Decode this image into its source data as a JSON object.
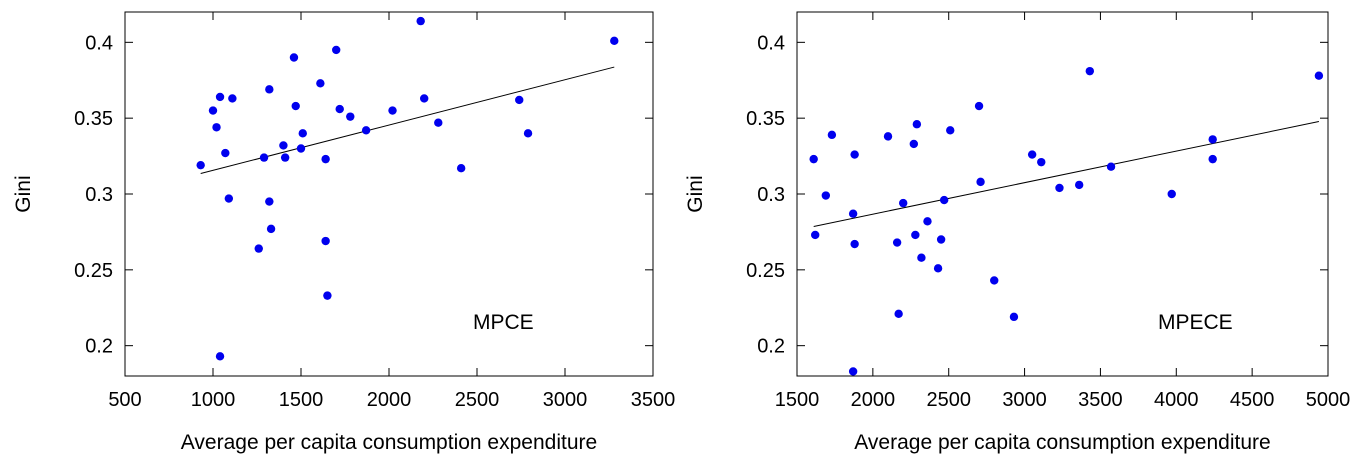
{
  "chart_data": [
    {
      "type": "scatter",
      "xlabel": "Average per capita consumption expenditure",
      "ylabel": "Gini",
      "annotation": "MPCE",
      "xlim": [
        500,
        3500
      ],
      "ylim": [
        0.18,
        0.42
      ],
      "xticks": [
        500,
        1000,
        1500,
        2000,
        2500,
        3000,
        3500
      ],
      "yticks": [
        0.2,
        0.25,
        0.3,
        0.35,
        0.4
      ],
      "grid": false,
      "point_color": "#0000ee",
      "points": [
        [
          930,
          0.319
        ],
        [
          1000,
          0.355
        ],
        [
          1020,
          0.344
        ],
        [
          1040,
          0.364
        ],
        [
          1040,
          0.193
        ],
        [
          1070,
          0.327
        ],
        [
          1090,
          0.297
        ],
        [
          1110,
          0.363
        ],
        [
          1260,
          0.264
        ],
        [
          1290,
          0.324
        ],
        [
          1320,
          0.369
        ],
        [
          1320,
          0.295
        ],
        [
          1330,
          0.277
        ],
        [
          1400,
          0.332
        ],
        [
          1410,
          0.324
        ],
        [
          1460,
          0.39
        ],
        [
          1470,
          0.358
        ],
        [
          1500,
          0.33
        ],
        [
          1510,
          0.34
        ],
        [
          1610,
          0.373
        ],
        [
          1640,
          0.323
        ],
        [
          1640,
          0.269
        ],
        [
          1650,
          0.233
        ],
        [
          1700,
          0.395
        ],
        [
          1720,
          0.356
        ],
        [
          1780,
          0.351
        ],
        [
          1870,
          0.342
        ],
        [
          2020,
          0.355
        ],
        [
          2180,
          0.414
        ],
        [
          2200,
          0.363
        ],
        [
          2280,
          0.347
        ],
        [
          2410,
          0.317
        ],
        [
          2740,
          0.362
        ],
        [
          2790,
          0.34
        ],
        [
          3280,
          0.401
        ]
      ],
      "fit_line": {
        "x": [
          930,
          3280
        ],
        "y": [
          0.3135,
          0.3837
        ]
      }
    },
    {
      "type": "scatter",
      "xlabel": "Average per capita consumption expenditure",
      "ylabel": "Gini",
      "annotation": "MPECE",
      "xlim": [
        1500,
        5000
      ],
      "ylim": [
        0.18,
        0.42
      ],
      "xticks": [
        1500,
        2000,
        2500,
        3000,
        3500,
        4000,
        4500,
        5000
      ],
      "yticks": [
        0.2,
        0.25,
        0.3,
        0.35,
        0.4
      ],
      "grid": false,
      "point_color": "#0000ee",
      "points": [
        [
          1610,
          0.323
        ],
        [
          1620,
          0.273
        ],
        [
          1690,
          0.299
        ],
        [
          1730,
          0.339
        ],
        [
          1870,
          0.287
        ],
        [
          1880,
          0.326
        ],
        [
          1880,
          0.267
        ],
        [
          1870,
          0.183
        ],
        [
          2100,
          0.338
        ],
        [
          2160,
          0.268
        ],
        [
          2170,
          0.221
        ],
        [
          2200,
          0.294
        ],
        [
          2270,
          0.333
        ],
        [
          2280,
          0.273
        ],
        [
          2290,
          0.346
        ],
        [
          2320,
          0.258
        ],
        [
          2360,
          0.282
        ],
        [
          2430,
          0.251
        ],
        [
          2450,
          0.27
        ],
        [
          2470,
          0.296
        ],
        [
          2510,
          0.342
        ],
        [
          2700,
          0.358
        ],
        [
          2710,
          0.308
        ],
        [
          2800,
          0.243
        ],
        [
          2930,
          0.219
        ],
        [
          3050,
          0.326
        ],
        [
          3110,
          0.321
        ],
        [
          3230,
          0.304
        ],
        [
          3360,
          0.306
        ],
        [
          3430,
          0.381
        ],
        [
          3570,
          0.318
        ],
        [
          3970,
          0.3
        ],
        [
          4240,
          0.336
        ],
        [
          4240,
          0.323
        ],
        [
          4940,
          0.378
        ]
      ],
      "fit_line": {
        "x": [
          1610,
          4940
        ],
        "y": [
          0.2786,
          0.3478
        ]
      }
    }
  ]
}
